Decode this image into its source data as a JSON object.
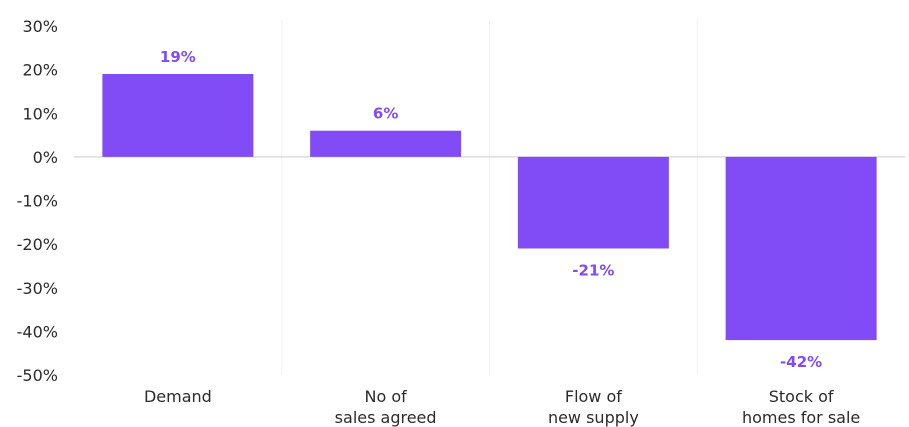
{
  "colors": {
    "bar": "#814CF5",
    "data_label": "#814CF5",
    "zero_line": "#dcdcdc",
    "divider": "#f0f0f0",
    "text": "#2b2b2b"
  },
  "chart_data": {
    "type": "bar",
    "title": "",
    "xlabel": "",
    "ylabel": "",
    "ylim": [
      -50,
      30
    ],
    "ytick_values": [
      30,
      20,
      10,
      0,
      -10,
      -20,
      -30,
      -40,
      -50
    ],
    "ytick_labels": [
      "30%",
      "20%",
      "10%",
      "0%",
      "-10%",
      "-20%",
      "-30%",
      "-40%",
      "-50%"
    ],
    "categories": [
      [
        "Demand"
      ],
      [
        "No of",
        "sales agreed"
      ],
      [
        "Flow of",
        "new supply"
      ],
      [
        "Stock of",
        "homes for sale"
      ]
    ],
    "values": [
      19,
      6,
      -21,
      -42
    ],
    "data_labels": [
      "19%",
      "6%",
      "-21%",
      "-42%"
    ],
    "grid": false,
    "legend": "none"
  }
}
